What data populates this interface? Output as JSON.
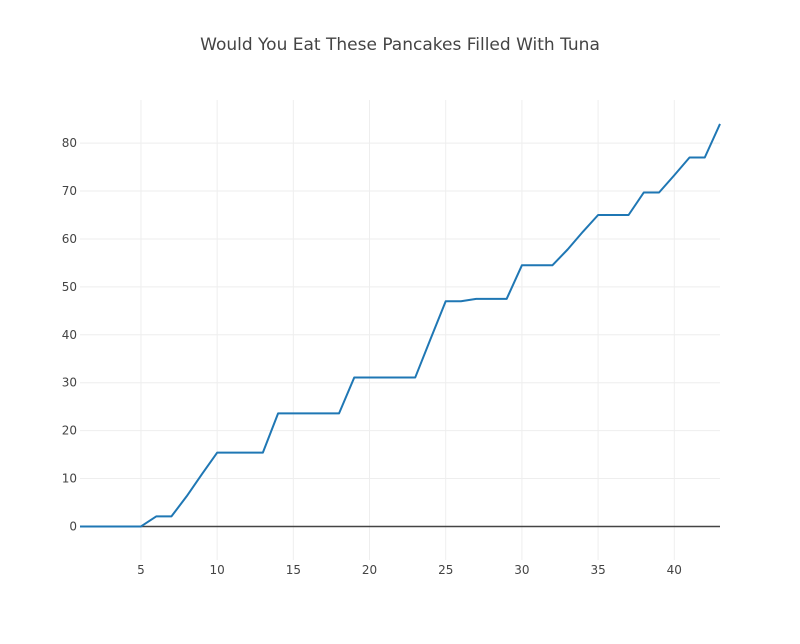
{
  "chart_data": {
    "type": "line",
    "title": "Would You Eat These Pancakes Filled With Tuna",
    "xlabel": "",
    "ylabel": "",
    "xlim": [
      1,
      43
    ],
    "ylim": [
      -7,
      89
    ],
    "x_ticks": [
      5,
      10,
      15,
      20,
      25,
      30,
      35,
      40
    ],
    "y_ticks": [
      0,
      10,
      20,
      30,
      40,
      50,
      60,
      70,
      80
    ],
    "grid": true,
    "legend": "none",
    "series": [
      {
        "color": "#1f77b4",
        "x": [
          1,
          2,
          3,
          4,
          5,
          6,
          7,
          8,
          9,
          10,
          11,
          12,
          13,
          14,
          15,
          16,
          17,
          18,
          19,
          20,
          21,
          22,
          23,
          24,
          25,
          26,
          27,
          28,
          29,
          30,
          31,
          32,
          33,
          34,
          35,
          36,
          37,
          38,
          39,
          40,
          41,
          42,
          43
        ],
        "values": [
          0,
          0,
          0,
          0,
          0,
          2.1,
          2.1,
          6.3,
          10.9,
          15.4,
          15.4,
          15.4,
          15.4,
          23.6,
          23.6,
          23.6,
          23.6,
          23.6,
          31.1,
          31.1,
          31.1,
          31.1,
          31.1,
          39.1,
          47.0,
          47.0,
          47.5,
          47.5,
          47.5,
          54.5,
          54.5,
          54.5,
          57.8,
          61.5,
          65.0,
          65.0,
          65.0,
          69.7,
          69.7,
          73.3,
          77.0,
          77.0,
          84.0
        ]
      }
    ]
  },
  "colors": {
    "line": "#1f77b4",
    "grid": "#eeeeee",
    "zeroline": "#444444",
    "text": "#444444",
    "background": "#ffffff"
  }
}
